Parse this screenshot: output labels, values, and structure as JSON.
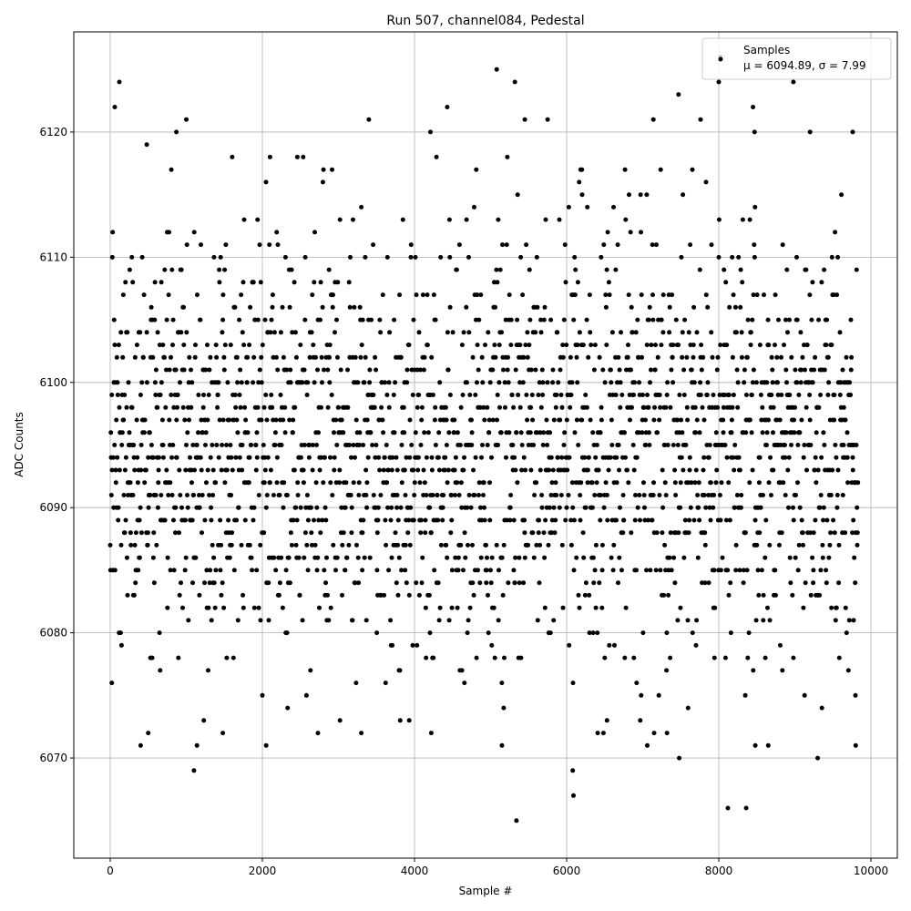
{
  "chart_data": {
    "type": "scatter",
    "title": "Run 507, channel084, Pedestal",
    "xlabel": "Sample #",
    "ylabel": "ADC Counts",
    "xlim": [
      -479,
      10347
    ],
    "ylim": [
      6062,
      6128
    ],
    "xticks": [
      0,
      2000,
      4000,
      6000,
      8000,
      10000
    ],
    "xtick_labels": [
      "0",
      "2000",
      "4000",
      "6000",
      "8000",
      "10000"
    ],
    "yticks": [
      6070,
      6080,
      6090,
      6100,
      6110,
      6120
    ],
    "ytick_labels": [
      "6070",
      "6080",
      "6090",
      "6100",
      "6110",
      "6120"
    ],
    "grid": true,
    "legend": {
      "placement": "top-right",
      "series_name": "Samples",
      "stats_label": "μ = 6094.89, σ = 7.99"
    },
    "series": [
      {
        "name": "Samples",
        "color": "#000000",
        "sample_range": [
          0,
          9830
        ],
        "mean": 6094.89,
        "std": 7.99,
        "integer_values": true,
        "outliers": [
          [
            20,
            6076
          ],
          [
            60,
            6122
          ],
          [
            120,
            6124
          ],
          [
            480,
            6119
          ],
          [
            400,
            6071
          ],
          [
            500,
            6072
          ],
          [
            870,
            6120
          ],
          [
            1000,
            6121
          ],
          [
            1100,
            6069
          ],
          [
            1140,
            6071
          ],
          [
            1230,
            6073
          ],
          [
            1480,
            6072
          ],
          [
            2000,
            6075
          ],
          [
            2050,
            6071
          ],
          [
            2100,
            6118
          ],
          [
            2460,
            6118
          ],
          [
            2730,
            6072
          ],
          [
            3020,
            6073
          ],
          [
            3400,
            6121
          ],
          [
            3300,
            6072
          ],
          [
            3930,
            6073
          ],
          [
            4210,
            6120
          ],
          [
            4220,
            6072
          ],
          [
            4430,
            6122
          ],
          [
            5080,
            6125
          ],
          [
            5320,
            6124
          ],
          [
            5340,
            6065
          ],
          [
            5450,
            6121
          ],
          [
            5150,
            6071
          ],
          [
            5750,
            6121
          ],
          [
            6080,
            6069
          ],
          [
            6090,
            6067
          ],
          [
            6200,
            6117
          ],
          [
            6530,
            6073
          ],
          [
            7060,
            6071
          ],
          [
            7140,
            6121
          ],
          [
            7150,
            6072
          ],
          [
            7320,
            6072
          ],
          [
            7470,
            6123
          ],
          [
            7480,
            6070
          ],
          [
            7760,
            6121
          ],
          [
            8000,
            6124
          ],
          [
            8020,
            6126
          ],
          [
            8120,
            6066
          ],
          [
            8360,
            6066
          ],
          [
            8450,
            6122
          ],
          [
            8470,
            6120
          ],
          [
            8480,
            6071
          ],
          [
            8650,
            6071
          ],
          [
            8980,
            6124
          ],
          [
            9300,
            6070
          ],
          [
            9760,
            6120
          ],
          [
            9800,
            6071
          ],
          [
            9200,
            6120
          ]
        ]
      }
    ]
  }
}
